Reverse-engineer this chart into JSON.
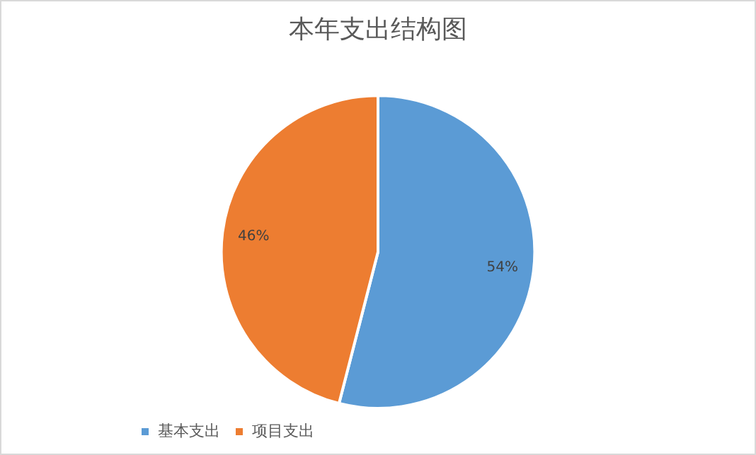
{
  "chart_data": {
    "type": "pie",
    "title": "本年支出结构图",
    "categories": [
      "基本支出",
      "项目支出"
    ],
    "values": [
      54,
      46
    ],
    "colors": [
      "#5b9bd5",
      "#ed7d31"
    ],
    "value_labels": [
      "54%",
      "46%"
    ],
    "legend": "bottom left"
  }
}
